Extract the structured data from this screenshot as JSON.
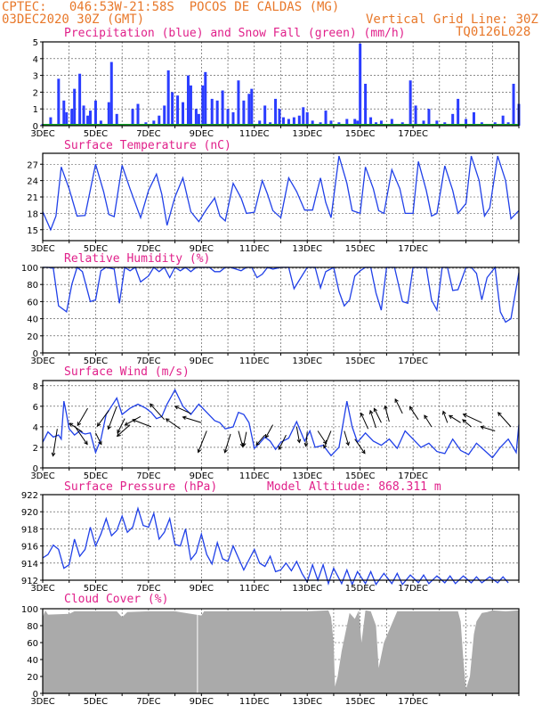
{
  "header": {
    "line1": "CPTEC:   046:53W-21:58S  POCOS DE CALDAS (MG)",
    "line2": "03DEC2020 30Z (GMT)",
    "grid_note": "Vertical Grid Line: 30Z",
    "code": "TQ0126L028"
  },
  "x_ticks": [
    "3DEC",
    "5DEC",
    "7DEC",
    "9DEC",
    "11DEC",
    "13DEC",
    "15DEC",
    "17DEC"
  ],
  "chart_data": [
    {
      "type": "bar",
      "title": "Precipitation (blue) and Snow Fall (green) (mm/h)",
      "ylim": [
        0,
        5
      ],
      "yticks": [
        0,
        1,
        2,
        3,
        4,
        5
      ],
      "colors": {
        "precip": "#2b3dff",
        "snow": "#15a02a"
      },
      "x_days": [
        0.0,
        0.3,
        0.6,
        0.8,
        0.9,
        1.1,
        1.2,
        1.4,
        1.55,
        1.7,
        1.8,
        2.0,
        2.2,
        2.5,
        2.6,
        2.8,
        3.0,
        3.4,
        3.6,
        3.9,
        4.2,
        4.4,
        4.6,
        4.75,
        4.9,
        5.1,
        5.3,
        5.5,
        5.6,
        5.8,
        5.9,
        6.05,
        6.15,
        6.4,
        6.6,
        6.8,
        7.0,
        7.2,
        7.4,
        7.6,
        7.8,
        7.9,
        8.0,
        8.2,
        8.4,
        8.6,
        8.8,
        8.95,
        9.1,
        9.3,
        9.5,
        9.7,
        9.85,
        10.0,
        10.2,
        10.5,
        10.7,
        10.9,
        11.2,
        11.5,
        11.8,
        11.9,
        12.0,
        12.2,
        12.4,
        12.6,
        12.8,
        13.2,
        13.6,
        13.9,
        14.1,
        14.4,
        14.6,
        14.9,
        15.2,
        15.5,
        15.7,
        16.0,
        16.3,
        16.6,
        16.9,
        17.1,
        17.4,
        17.6,
        17.8,
        18.0
      ],
      "values": [
        0.1,
        0.5,
        2.8,
        1.5,
        0.8,
        1.0,
        2.2,
        3.1,
        1.2,
        0.6,
        0.9,
        1.5,
        0.3,
        1.4,
        3.8,
        0.7,
        0.0,
        1.0,
        1.3,
        0.2,
        0.3,
        0.6,
        1.2,
        3.3,
        2.0,
        1.8,
        1.4,
        3.0,
        2.4,
        1.0,
        0.7,
        2.4,
        3.2,
        1.6,
        1.5,
        2.1,
        1.0,
        0.8,
        2.7,
        1.5,
        1.9,
        2.2,
        0.0,
        0.3,
        1.2,
        0.2,
        1.6,
        1.0,
        0.5,
        0.4,
        0.5,
        0.6,
        1.1,
        0.8,
        0.3,
        0.2,
        0.9,
        0.3,
        0.2,
        0.4,
        0.4,
        0.3,
        4.9,
        2.5,
        0.5,
        0.2,
        0.3,
        0.4,
        0.2,
        2.7,
        1.2,
        0.3,
        1.0,
        0.3,
        0.2,
        0.7,
        1.6,
        0.4,
        0.8,
        0.2,
        0.1,
        0.2,
        0.6,
        0.2,
        2.5,
        1.3
      ],
      "snow": 0
    },
    {
      "type": "line",
      "title": "Surface Temperature (nC)",
      "ylim": [
        13,
        29
      ],
      "yticks": [
        15,
        18,
        21,
        24,
        27
      ],
      "x_days": [
        0.0,
        0.3,
        0.5,
        0.7,
        1.0,
        1.3,
        1.6,
        2.0,
        2.3,
        2.5,
        2.7,
        3.0,
        3.3,
        3.7,
        4.0,
        4.3,
        4.5,
        4.7,
        5.0,
        5.3,
        5.6,
        5.9,
        6.2,
        6.5,
        6.7,
        6.9,
        7.2,
        7.5,
        7.7,
        8.0,
        8.3,
        8.5,
        8.7,
        9.0,
        9.3,
        9.6,
        9.9,
        10.2,
        10.5,
        10.7,
        10.9,
        11.2,
        11.5,
        11.7,
        12.0,
        12.2,
        12.5,
        12.7,
        12.9,
        13.2,
        13.5,
        13.7,
        14.0,
        14.2,
        14.5,
        14.7,
        14.9,
        15.2,
        15.5,
        15.7,
        16.0,
        16.2,
        16.5,
        16.7,
        16.9,
        17.2,
        17.5,
        17.7,
        18.0
      ],
      "values": [
        18.3,
        15.0,
        17.5,
        26.5,
        22.5,
        17.5,
        17.6,
        27.0,
        22.0,
        17.8,
        17.4,
        26.8,
        22.5,
        17.2,
        22.2,
        25.2,
        21.5,
        15.8,
        21.0,
        24.5,
        18.3,
        16.5,
        18.8,
        20.8,
        17.5,
        16.6,
        23.5,
        20.8,
        18.0,
        18.2,
        24.0,
        21.5,
        18.5,
        17.2,
        24.5,
        22.0,
        18.6,
        18.6,
        24.5,
        20.0,
        17.2,
        28.5,
        23.5,
        18.5,
        18.0,
        26.5,
        22.5,
        18.5,
        18.0,
        26.0,
        22.5,
        18.0,
        18.0,
        27.5,
        22.2,
        17.5,
        18.0,
        26.7,
        22.2,
        18.0,
        19.8,
        28.5,
        24.0,
        17.5,
        19.0,
        28.5,
        24.0,
        17.0,
        18.5
      ]
    },
    {
      "type": "line",
      "title": "Relative Humidity (%)",
      "ylim": [
        0,
        100
      ],
      "yticks": [
        0,
        20,
        40,
        60,
        80,
        100
      ],
      "x_days": [
        0.0,
        0.2,
        0.4,
        0.6,
        0.9,
        1.1,
        1.3,
        1.5,
        1.8,
        2.0,
        2.2,
        2.4,
        2.7,
        2.9,
        3.1,
        3.3,
        3.5,
        3.7,
        4.0,
        4.2,
        4.4,
        4.6,
        4.8,
        5.0,
        5.2,
        5.4,
        5.6,
        5.8,
        6.1,
        6.3,
        6.5,
        6.7,
        6.9,
        7.1,
        7.3,
        7.5,
        7.7,
        7.9,
        8.1,
        8.3,
        8.5,
        8.7,
        9.0,
        9.3,
        9.5,
        9.7,
        10.0,
        10.3,
        10.5,
        10.7,
        11.0,
        11.2,
        11.4,
        11.6,
        11.8,
        12.0,
        12.2,
        12.4,
        12.6,
        12.8,
        13.0,
        13.3,
        13.6,
        13.8,
        14.0,
        14.2,
        14.5,
        14.7,
        14.9,
        15.1,
        15.3,
        15.5,
        15.7,
        16.0,
        16.2,
        16.4,
        16.6,
        16.8,
        17.1,
        17.3,
        17.5,
        17.7,
        18.0
      ],
      "values": [
        100,
        100,
        99,
        55,
        48,
        80,
        100,
        95,
        60,
        62,
        96,
        100,
        98,
        58,
        100,
        96,
        100,
        83,
        90,
        100,
        95,
        100,
        88,
        100,
        96,
        100,
        95,
        100,
        100,
        100,
        95,
        95,
        100,
        100,
        98,
        96,
        100,
        100,
        88,
        92,
        100,
        98,
        100,
        100,
        75,
        85,
        100,
        100,
        76,
        95,
        100,
        72,
        55,
        62,
        90,
        96,
        100,
        100,
        70,
        50,
        100,
        100,
        60,
        58,
        100,
        100,
        100,
        62,
        50,
        100,
        100,
        73,
        74,
        100,
        100,
        93,
        62,
        88,
        100,
        48,
        36,
        40,
        94
      ],
      "grid_top": true
    },
    {
      "type": "line",
      "title": "Surface Wind (m/s)",
      "ylim": [
        0,
        8.5
      ],
      "yticks": [
        0,
        2,
        4,
        6,
        8
      ],
      "x_days": [
        0.0,
        0.2,
        0.4,
        0.6,
        0.7,
        0.8,
        0.9,
        1.0,
        1.2,
        1.4,
        1.5,
        1.6,
        1.8,
        2.0,
        2.2,
        2.4,
        2.6,
        2.8,
        3.0,
        3.3,
        3.6,
        3.9,
        4.1,
        4.3,
        4.5,
        4.7,
        5.0,
        5.3,
        5.6,
        5.9,
        6.2,
        6.5,
        6.7,
        6.9,
        7.2,
        7.4,
        7.6,
        7.8,
        8.0,
        8.2,
        8.4,
        8.6,
        8.8,
        9.0,
        9.3,
        9.6,
        9.9,
        10.1,
        10.3,
        10.6,
        10.9,
        11.2,
        11.5,
        11.7,
        11.9,
        12.2,
        12.5,
        12.8,
        13.1,
        13.4,
        13.7,
        14.0,
        14.3,
        14.6,
        14.9,
        15.2,
        15.5,
        15.8,
        16.1,
        16.4,
        16.7,
        17.0,
        17.3,
        17.6,
        17.9,
        18.0
      ],
      "values": [
        2.5,
        3.5,
        3.0,
        3.2,
        2.8,
        6.5,
        5.2,
        3.8,
        3.2,
        3.6,
        3.4,
        3.3,
        3.4,
        1.5,
        2.8,
        5.2,
        6.0,
        6.8,
        5.2,
        5.8,
        6.2,
        5.8,
        5.4,
        4.8,
        5.0,
        6.2,
        7.6,
        6.0,
        5.2,
        6.2,
        5.4,
        4.6,
        4.4,
        3.8,
        4.0,
        5.4,
        5.2,
        4.4,
        1.9,
        2.4,
        3.0,
        2.6,
        1.8,
        2.5,
        2.9,
        4.5,
        2.6,
        3.6,
        2.0,
        2.2,
        1.2,
        2.0,
        6.5,
        4.0,
        2.5,
        3.4,
        2.6,
        2.2,
        2.8,
        1.9,
        3.6,
        2.8,
        2.0,
        2.4,
        1.6,
        1.4,
        2.8,
        1.7,
        1.3,
        2.4,
        1.7,
        1.0,
        2.0,
        2.8,
        1.5,
        4.2
      ],
      "arrows": [
        [
          0.55,
          3.8,
          -0.3,
          -1.9
        ],
        [
          1.2,
          4.1,
          0.9,
          -1.3
        ],
        [
          1.5,
          3.5,
          -0.9,
          0.6
        ],
        [
          1.7,
          5.8,
          -0.7,
          -1.2
        ],
        [
          2.0,
          3.4,
          0.4,
          -0.8
        ],
        [
          2.5,
          5.6,
          -0.8,
          -1.1
        ],
        [
          2.8,
          6.0,
          -0.6,
          -1.6
        ],
        [
          3.1,
          4.8,
          -0.5,
          -1.0
        ],
        [
          3.3,
          4.2,
          -0.9,
          -0.8
        ],
        [
          3.7,
          5.0,
          -1.1,
          -0.6
        ],
        [
          4.1,
          4.0,
          -1.3,
          0.5
        ],
        [
          4.6,
          4.7,
          -1.0,
          1.1
        ],
        [
          5.2,
          3.8,
          -1.0,
          0.7
        ],
        [
          5.6,
          5.3,
          -1.1,
          0.5
        ],
        [
          6.0,
          4.4,
          -1.3,
          0.4
        ],
        [
          6.2,
          3.6,
          -0.6,
          -1.5
        ],
        [
          7.1,
          3.3,
          -0.4,
          -1.3
        ],
        [
          7.4,
          3.6,
          0.3,
          -1.1
        ],
        [
          7.7,
          3.5,
          -0.2,
          -1.0
        ],
        [
          8.4,
          3.2,
          -0.6,
          -0.7
        ],
        [
          8.7,
          4.2,
          -0.5,
          -0.9
        ],
        [
          9.2,
          3.2,
          -0.5,
          -1.0
        ],
        [
          9.6,
          4.0,
          0.2,
          -1.1
        ],
        [
          10.0,
          3.5,
          -0.1,
          -1.0
        ],
        [
          10.4,
          3.6,
          0.6,
          -0.9
        ],
        [
          10.9,
          3.6,
          -0.5,
          -1.2
        ],
        [
          11.4,
          3.6,
          0.3,
          -1.0
        ],
        [
          11.8,
          2.8,
          0.7,
          -1.0
        ],
        [
          12.3,
          3.8,
          -0.5,
          1.1
        ],
        [
          12.6,
          3.9,
          -0.4,
          1.2
        ],
        [
          12.8,
          4.4,
          -0.5,
          1.0
        ],
        [
          13.1,
          4.5,
          -0.3,
          1.1
        ],
        [
          13.6,
          5.3,
          -0.5,
          1.0
        ],
        [
          14.2,
          4.7,
          -0.6,
          0.9
        ],
        [
          14.7,
          4.0,
          -0.5,
          0.8
        ],
        [
          15.3,
          4.4,
          -0.3,
          0.8
        ],
        [
          15.8,
          4.4,
          -0.8,
          0.5
        ],
        [
          16.2,
          4.0,
          -0.6,
          0.5
        ],
        [
          16.6,
          4.4,
          -1.3,
          0.6
        ],
        [
          17.1,
          3.6,
          -1.0,
          0.3
        ],
        [
          17.7,
          4.0,
          -0.9,
          1.0
        ]
      ]
    },
    {
      "type": "line",
      "title": "Surface Pressure (hPa)",
      "annotation": "Model Altitude: 868.311 m",
      "ylim": [
        912,
        922
      ],
      "yticks": [
        912,
        914,
        916,
        918,
        920,
        922
      ],
      "x_days": [
        0.0,
        0.2,
        0.4,
        0.6,
        0.8,
        1.0,
        1.2,
        1.4,
        1.6,
        1.8,
        2.0,
        2.2,
        2.4,
        2.6,
        2.8,
        3.0,
        3.2,
        3.4,
        3.6,
        3.8,
        4.0,
        4.2,
        4.4,
        4.6,
        4.8,
        5.0,
        5.2,
        5.4,
        5.6,
        5.8,
        6.0,
        6.2,
        6.4,
        6.6,
        6.8,
        7.0,
        7.2,
        7.4,
        7.6,
        7.8,
        8.0,
        8.2,
        8.4,
        8.6,
        8.8,
        9.0,
        9.2,
        9.4,
        9.6,
        9.8,
        10.0,
        10.2,
        10.4,
        10.6,
        10.8,
        11.0,
        11.3,
        11.5,
        11.7,
        11.9,
        12.2,
        12.4,
        12.6,
        12.9,
        13.2,
        13.4,
        13.6,
        13.9,
        14.2,
        14.4,
        14.6,
        14.9,
        15.2,
        15.4,
        15.6,
        15.9,
        16.2,
        16.4,
        16.6,
        16.9,
        17.2,
        17.4,
        17.6
      ],
      "values": [
        914.6,
        915.0,
        916.1,
        915.6,
        913.4,
        913.8,
        916.8,
        914.8,
        915.6,
        918.2,
        916.0,
        917.4,
        919.2,
        917.2,
        917.8,
        919.5,
        917.6,
        918.2,
        920.4,
        918.4,
        918.2,
        919.8,
        916.8,
        917.6,
        919.2,
        916.2,
        916.0,
        918.0,
        914.4,
        915.2,
        917.4,
        915.0,
        913.9,
        916.4,
        914.5,
        914.2,
        916.0,
        914.6,
        913.2,
        914.4,
        915.6,
        914.0,
        913.6,
        914.8,
        913.0,
        913.2,
        914.0,
        913.1,
        914.2,
        912.8,
        911.8,
        913.8,
        912.0,
        913.8,
        911.6,
        913.4,
        911.6,
        913.2,
        911.5,
        913.0,
        911.6,
        913.0,
        911.5,
        912.8,
        911.6,
        912.8,
        911.5,
        912.6,
        911.7,
        912.6,
        911.6,
        912.5,
        911.7,
        912.5,
        911.6,
        912.5,
        911.7,
        912.4,
        911.7,
        912.4,
        911.7,
        912.4,
        911.7
      ]
    },
    {
      "type": "area",
      "title": "Cloud Cover (%)",
      "ylim": [
        0,
        100
      ],
      "yticks": [
        0,
        20,
        40,
        60,
        80,
        100
      ],
      "color": "#aaaaaa",
      "x_days": [
        0.0,
        0.1,
        0.2,
        1.0,
        1.2,
        2.8,
        3.0,
        3.2,
        4.0,
        5.0,
        6.0,
        6.1,
        6.2,
        7.0,
        8.0,
        9.0,
        10.0,
        10.8,
        10.9,
        11.0,
        11.05,
        11.15,
        11.3,
        11.6,
        11.8,
        11.95,
        12.05,
        12.2,
        12.4,
        12.6,
        12.7,
        12.9,
        13.4,
        14.0,
        15.0,
        15.7,
        15.8,
        15.9,
        16.0,
        16.15,
        16.3,
        16.4,
        16.6,
        16.8,
        17.0,
        17.5,
        18.0
      ],
      "values": [
        90,
        98,
        93,
        94,
        97,
        97,
        90,
        96,
        97,
        97,
        92,
        97,
        97,
        97,
        97,
        97,
        97,
        98,
        90,
        60,
        8,
        20,
        50,
        95,
        88,
        98,
        60,
        98,
        97,
        80,
        30,
        60,
        97,
        97,
        97,
        97,
        85,
        40,
        5,
        20,
        70,
        85,
        95,
        96,
        98,
        97,
        98
      ]
    }
  ]
}
